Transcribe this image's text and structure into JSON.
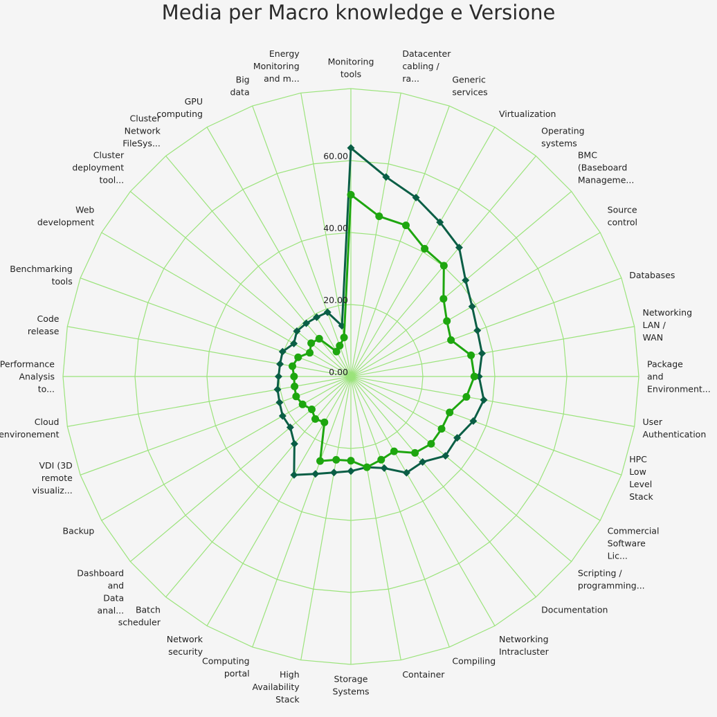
{
  "chart_data": {
    "type": "radar",
    "title": "Media per Macro knowledge e Versione",
    "rlim": [
      0,
      80
    ],
    "ticks": [
      "0.00",
      "20.00",
      "40.00",
      "60.00"
    ],
    "tick_values": [
      0,
      20,
      40,
      60
    ],
    "grid": true,
    "colors": {
      "grid": "#9be37b",
      "series_a": "#0a5e45",
      "series_b": "#1ea60f",
      "background": "#f5f5f5"
    },
    "categories": [
      [
        "Monitoring",
        "tools"
      ],
      [
        "Datacenter",
        "cabling /",
        "ra..."
      ],
      [
        "Generic",
        "services"
      ],
      [
        "Virtualization"
      ],
      [
        "Operating",
        "systems"
      ],
      [
        "BMC",
        "(Baseboard",
        "Manageme..."
      ],
      [
        "Source",
        "control"
      ],
      [
        "Databases"
      ],
      [
        "Networking",
        "LAN /",
        "WAN"
      ],
      [
        "Package",
        "and",
        "Environment..."
      ],
      [
        "User",
        "Authentication"
      ],
      [
        "HPC",
        "Low",
        "Level",
        "Stack"
      ],
      [
        "Commercial",
        "Software",
        "Lic..."
      ],
      [
        "Scripting /",
        "programming..."
      ],
      [
        "Documentation"
      ],
      [
        "Networking",
        "Intracluster"
      ],
      [
        "Compiling"
      ],
      [
        "Container"
      ],
      [
        "Storage",
        "Systems"
      ],
      [
        "High",
        "Availability",
        "Stack"
      ],
      [
        "Computing",
        "portal"
      ],
      [
        "Network",
        "security"
      ],
      [
        "Batch",
        "scheduler"
      ],
      [
        "Dashboard",
        "and",
        "Data",
        "anal..."
      ],
      [
        "Backup"
      ],
      [
        "VDI (3D",
        "remote",
        "visualiz..."
      ],
      [
        "Cloud",
        "environement"
      ],
      [
        "Performance",
        "Analysis",
        "to..."
      ],
      [
        "Code",
        "release"
      ],
      [
        "Benchmarking",
        "tools"
      ],
      [
        "Web",
        "development"
      ],
      [
        "Cluster",
        "deployment",
        "tool..."
      ],
      [
        "Cluster",
        "Network",
        "FileSys..."
      ],
      [
        "GPU",
        "computing"
      ],
      [
        "Big",
        "data"
      ],
      [
        "Energy",
        "Monitoring",
        "and m..."
      ]
    ],
    "series": [
      {
        "marker": "diamond",
        "values": [
          63.5,
          56.3,
          52.9,
          49.5,
          46.8,
          41.6,
          38.9,
          37.4,
          37.0,
          35.6,
          37.5,
          36.2,
          34.1,
          34.3,
          31.0,
          30.9,
          27.1,
          25.6,
          26.3,
          27.1,
          28.8,
          31.6,
          24.4,
          22.0,
          21.9,
          21.1,
          20.7,
          20.1,
          20.0,
          20.2,
          18.3,
          19.6,
          19.3,
          19.0,
          19.0,
          14.3
        ]
      },
      {
        "marker": "circle",
        "values": [
          50.5,
          45.2,
          44.7,
          41.0,
          40.2,
          33.6,
          30.8,
          29.6,
          33.9,
          34.3,
          32.6,
          29.2,
          29.1,
          29.1,
          27.7,
          24.0,
          24.6,
          25.6,
          23.4,
          23.5,
          25.0,
          14.7,
          15.4,
          14.2,
          15.5,
          16.2,
          15.9,
          15.8,
          16.5,
          15.6,
          13.2,
          14.4,
          13.7,
          8.0,
          9.1,
          11.0
        ]
      }
    ]
  }
}
